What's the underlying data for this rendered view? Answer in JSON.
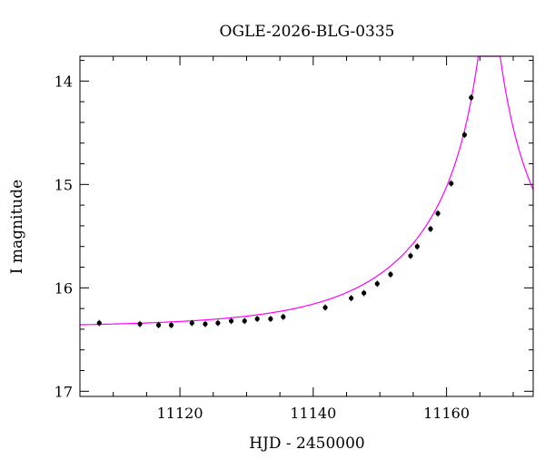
{
  "chart_data": {
    "type": "scatter",
    "title": "OGLE-2026-BLG-0335",
    "xlabel": "HJD - 2450000",
    "ylabel": "I magnitude",
    "xlim": [
      11105,
      11173
    ],
    "ylim": [
      17.05,
      13.76
    ],
    "y_inverted": true,
    "x_ticks": [
      11120,
      11140,
      11160
    ],
    "y_ticks": [
      14,
      15,
      16,
      17
    ],
    "grid": false,
    "legend": "none",
    "colors": {
      "data": "#000000",
      "model": "#ff00ff"
    },
    "series": [
      {
        "kind": "points",
        "x": [
          11107.9,
          11114.0,
          11116.8,
          11118.7,
          11121.8,
          11123.8,
          11125.7,
          11127.7,
          11129.7,
          11131.6,
          11133.6,
          11135.5,
          11141.8,
          11145.7,
          11147.6,
          11149.6,
          11151.6,
          11154.6,
          11155.6,
          11157.6,
          11158.7,
          11160.7,
          11162.7,
          11163.7
        ],
        "y": [
          16.34,
          16.35,
          16.36,
          16.36,
          16.34,
          16.35,
          16.34,
          16.32,
          16.32,
          16.3,
          16.3,
          16.28,
          16.19,
          16.1,
          16.05,
          15.96,
          15.87,
          15.69,
          15.6,
          15.43,
          15.28,
          14.99,
          14.52,
          14.16
        ]
      },
      {
        "kind": "model-curve",
        "t0": 11166.4,
        "u0": 0.05,
        "tE": 22,
        "baseline_mag": 16.38,
        "blend_fraction": 1.0
      }
    ]
  }
}
